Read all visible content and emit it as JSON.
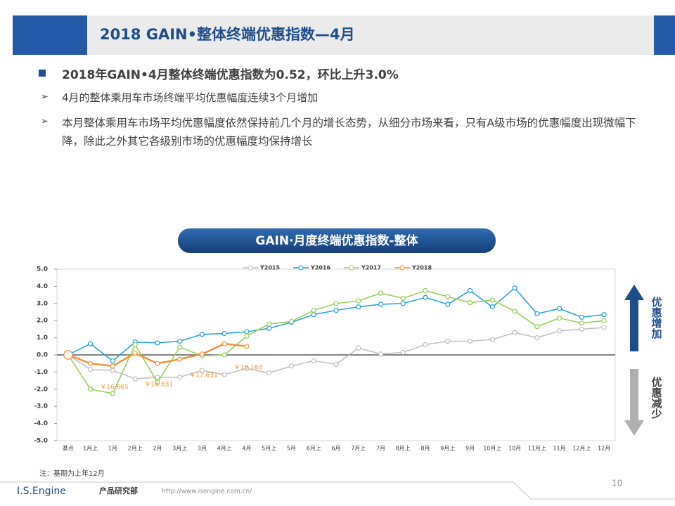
{
  "header": {
    "title": "2018 GAIN•整体终端优惠指数—4月"
  },
  "bullets": [
    "2018年GAIN•4月整体终端优惠指数为0.52，环比上升3.0%",
    "4月的整体乘用车市场终端平均优惠幅度连续3个月增加",
    "本月整体乘用车市场平均优惠幅度依然保持前几个月的增长态势，从细分市场来看，只有A级市场的优惠幅度出现微幅下降，除此之外其它各级别市场的优惠幅度均保持增长"
  ],
  "chart_data": {
    "type": "line",
    "title": "GAIN·月度终端优惠指数-整体",
    "categories": [
      "基点",
      "1月上",
      "1月",
      "2月上",
      "2月",
      "3月上",
      "3月",
      "4月上",
      "4月",
      "5月上",
      "5月",
      "6月上",
      "6月",
      "7月上",
      "7月",
      "8月上",
      "8月",
      "9月上",
      "9月",
      "10月上",
      "10月",
      "11月上",
      "11月",
      "12月上",
      "12月"
    ],
    "series": [
      {
        "name": "Y2015",
        "color": "#bfbfbf",
        "values": [
          0,
          -0.85,
          -0.9,
          -1.4,
          -1.3,
          -1.3,
          -0.9,
          -1.15,
          -0.8,
          -1.05,
          -0.65,
          -0.35,
          -0.55,
          0.4,
          0.05,
          0.15,
          0.6,
          0.8,
          0.8,
          0.9,
          1.3,
          1.0,
          1.4,
          1.5,
          1.6
        ]
      },
      {
        "name": "Y2016",
        "color": "#1ba1d9",
        "values": [
          0,
          0.65,
          -0.35,
          0.75,
          0.7,
          0.8,
          1.2,
          1.25,
          1.35,
          1.55,
          1.9,
          2.35,
          2.6,
          2.8,
          2.95,
          3.0,
          3.35,
          2.95,
          3.75,
          2.8,
          3.9,
          2.4,
          2.7,
          2.2,
          2.35
        ]
      },
      {
        "name": "Y2017",
        "color": "#92d050",
        "values": [
          0,
          -2.0,
          -2.25,
          0.6,
          -1.6,
          0.45,
          -0.05,
          0.0,
          1.1,
          1.8,
          1.95,
          2.6,
          3.0,
          3.15,
          3.6,
          3.3,
          3.75,
          3.4,
          3.05,
          3.2,
          2.55,
          1.65,
          2.15,
          1.85,
          2.0
        ]
      },
      {
        "name": "Y2018",
        "color": "#f39237",
        "values": [
          0,
          -0.5,
          -0.65,
          0.1,
          -0.5,
          -0.25,
          0.05,
          0.65,
          0.5,
          null,
          null,
          null,
          null,
          null,
          null,
          null,
          null,
          null,
          null,
          null,
          null,
          null,
          null,
          null,
          null
        ]
      }
    ],
    "annotations": [
      {
        "text": "￥16,665",
        "x": "1月"
      },
      {
        "text": "￥16,831",
        "x": "2月"
      },
      {
        "text": "￥17,631",
        "x": "3月"
      },
      {
        "text": "￥18,163",
        "x": "4月"
      }
    ],
    "ylim": [
      -5,
      5
    ],
    "yticks": [
      {
        "value": -5,
        "label": "-5.0"
      },
      {
        "value": -4,
        "label": "-4.0"
      },
      {
        "value": -3,
        "label": "-3.0"
      },
      {
        "value": -2,
        "label": "-2.0"
      },
      {
        "value": -1,
        "label": "-1.0"
      },
      {
        "value": 0,
        "label": "0.0"
      },
      {
        "value": 1,
        "label": "1.0"
      },
      {
        "value": 2,
        "label": "2.0"
      },
      {
        "value": 3,
        "label": "3.0"
      },
      {
        "value": 4,
        "label": "4.0"
      },
      {
        "value": 5,
        "label": "5.0"
      }
    ],
    "grid": false,
    "legend": "top"
  },
  "arrows": {
    "up": "优惠增加",
    "down": "优惠减少"
  },
  "note": "注：基期为上年12月",
  "footer": {
    "brand": "I.S.Engine",
    "dept": "产品研究部",
    "url": "http://www.isengine.com.cn/",
    "page": "10"
  }
}
